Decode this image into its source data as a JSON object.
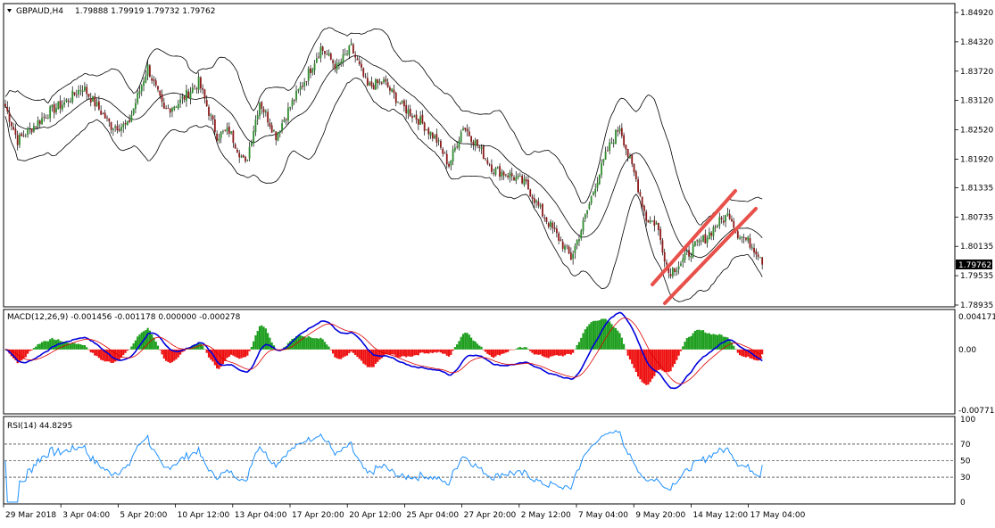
{
  "header": {
    "symbol": "GBPAUD,H4",
    "ohlc": "1.79888 1.79919 1.79732 1.79762"
  },
  "price_axis": {
    "ticks": [
      "1.84920",
      "1.84320",
      "1.83720",
      "1.83120",
      "1.82520",
      "1.81920",
      "1.81335",
      "1.80735",
      "1.80135",
      "1.79535",
      "1.78935"
    ],
    "current_price": "1.79762"
  },
  "macd_panel": {
    "label": "MACD(12,26,9) -0.001456 -0.001178 0.000000 -0.000278",
    "ticks": [
      "0.004171",
      "0.00",
      "-0.007717"
    ]
  },
  "rsi_panel": {
    "label": "RSI(14) 44.8295",
    "ticks": [
      "100",
      "70",
      "50",
      "30",
      "0"
    ]
  },
  "time_axis": {
    "labels": [
      "29 Mar 2018",
      "3 Apr 04:00",
      "5 Apr 20:00",
      "10 Apr 12:00",
      "13 Apr 04:00",
      "17 Apr 20:00",
      "20 Apr 12:00",
      "25 Apr 04:00",
      "27 Apr 20:00",
      "2 May 12:00",
      "7 May 04:00",
      "9 May 20:00",
      "14 May 12:00",
      "17 May 04:00"
    ]
  },
  "colors": {
    "bull_candle": "#2e8b2e",
    "bear_candle": "#8b1a1a",
    "bollinger": "#000000",
    "channel": "#e8504a",
    "macd_line": "#0000dd",
    "signal_line": "#dd0000",
    "hist_positive": "#1e9e1e",
    "hist_negative": "#ee1111",
    "rsi_line": "#1e90ff"
  },
  "chart_data": {
    "type": "candlestick",
    "symbol": "GBPAUD",
    "timeframe": "H4",
    "last_close": 1.79762,
    "price_range": [
      1.78935,
      1.8492
    ],
    "close_path": [
      [
        0,
        1.83
      ],
      [
        6,
        1.823
      ],
      [
        14,
        1.826
      ],
      [
        22,
        1.829
      ],
      [
        30,
        1.831
      ],
      [
        38,
        1.834
      ],
      [
        45,
        1.83
      ],
      [
        52,
        1.826
      ],
      [
        60,
        1.826
      ],
      [
        70,
        1.838
      ],
      [
        78,
        1.829
      ],
      [
        86,
        1.831
      ],
      [
        95,
        1.835
      ],
      [
        104,
        1.824
      ],
      [
        110,
        1.825
      ],
      [
        118,
        1.818
      ],
      [
        125,
        1.831
      ],
      [
        133,
        1.824
      ],
      [
        140,
        1.83
      ],
      [
        148,
        1.836
      ],
      [
        155,
        1.842
      ],
      [
        163,
        1.838
      ],
      [
        170,
        1.842
      ],
      [
        178,
        1.834
      ],
      [
        186,
        1.835
      ],
      [
        195,
        1.83
      ],
      [
        204,
        1.827
      ],
      [
        212,
        1.823
      ],
      [
        218,
        1.818
      ],
      [
        225,
        1.826
      ],
      [
        232,
        1.822
      ],
      [
        240,
        1.817
      ],
      [
        248,
        1.816
      ],
      [
        256,
        1.814
      ],
      [
        264,
        1.808
      ],
      [
        272,
        1.803
      ],
      [
        278,
        1.799
      ],
      [
        284,
        1.806
      ],
      [
        290,
        1.814
      ],
      [
        296,
        1.821
      ],
      [
        302,
        1.826
      ],
      [
        306,
        1.82
      ],
      [
        310,
        1.815
      ],
      [
        315,
        1.807
      ],
      [
        320,
        1.806
      ],
      [
        326,
        1.796
      ],
      [
        332,
        1.798
      ],
      [
        338,
        1.801
      ],
      [
        344,
        1.803
      ],
      [
        350,
        1.806
      ],
      [
        356,
        1.808
      ],
      [
        360,
        1.804
      ],
      [
        366,
        1.802
      ],
      [
        372,
        1.799
      ]
    ],
    "indicators": {
      "bollinger_bands": {
        "period": 20,
        "deviation": 2
      },
      "macd": {
        "fast": 12,
        "slow": 26,
        "signal": 9,
        "main": -0.001456,
        "signal_value": -0.001178,
        "histogram": -0.000278,
        "ticks": [
          0.004171,
          0.0,
          -0.007717
        ]
      },
      "rsi": {
        "period": 14,
        "value": 44.8295,
        "levels": [
          70,
          50,
          30
        ]
      }
    },
    "annotations": [
      {
        "type": "ascending_channel",
        "from": "9 May 20:00",
        "to": "15 May",
        "color": "#e8504a"
      }
    ]
  }
}
